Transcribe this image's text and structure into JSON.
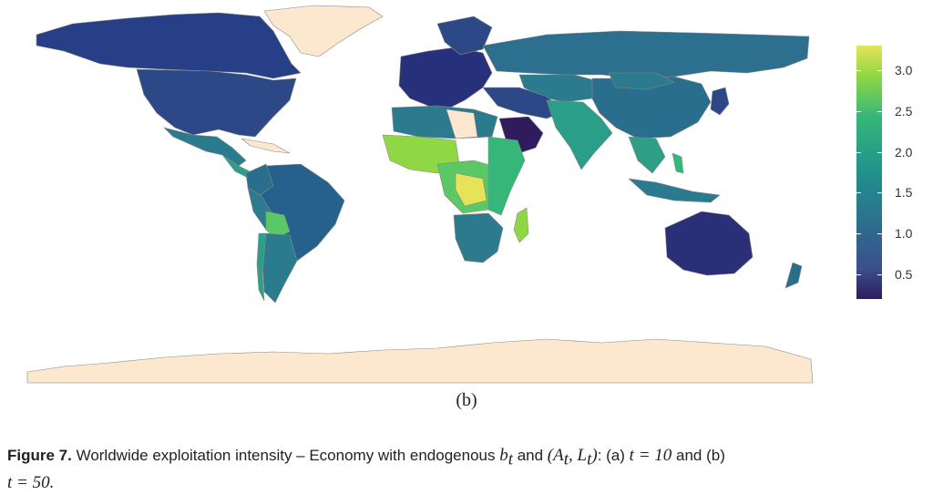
{
  "colors": {
    "background": "#ffffff",
    "no_data": "#fbe8cf",
    "border": "#8a8a8a",
    "scale_low": "#2e1c5d",
    "scale_mid": "#21918c",
    "scale_high": "#e5e459"
  },
  "legend": {
    "min": 0.2,
    "max": 3.3,
    "ticks": [
      "0.5",
      "1.0",
      "1.5",
      "2.0",
      "2.5",
      "3.0"
    ]
  },
  "panel_label": "(b)",
  "caption": {
    "label": "Figure 7.",
    "text_1": " Worldwide exploitation intensity – Economy with endogenous ",
    "var_b": "b",
    "var_b_sub": "t",
    "text_2": " and ",
    "pair_open": "(",
    "var_A": "A",
    "var_A_sub": "t",
    "pair_sep": ", ",
    "var_L": "L",
    "var_L_sub": "t",
    "pair_close": ")",
    "text_3": ": (a) ",
    "t_a": "t",
    "t_a_val": " = 10",
    "text_4": " and (b) ",
    "t_b": "t",
    "t_b_val": " = 50."
  }
}
